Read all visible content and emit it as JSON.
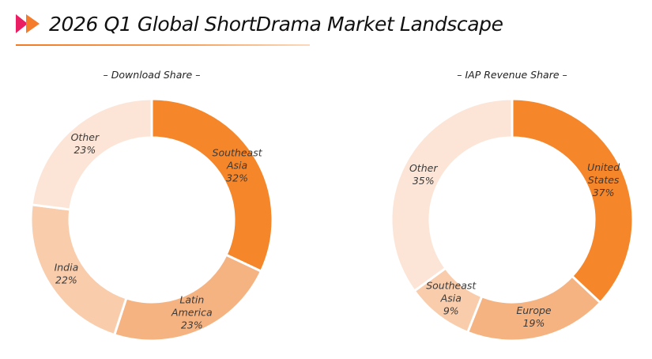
{
  "header": {
    "title": "2026 Q1 Global ShortDrama Market Landscape",
    "logo_icon": "double-arrow-logo-icon",
    "colors": {
      "logo_left": "#e91e63",
      "logo_right": "#f57c2b",
      "rule": "#f27a24"
    }
  },
  "chart_data": [
    {
      "type": "pie",
      "donut": true,
      "title": "– Download Share –",
      "legend": "none",
      "slices": [
        {
          "lines": [
            "Southeast",
            "Asia"
          ],
          "value": 32,
          "label": "32%",
          "color": "#f5862a"
        },
        {
          "lines": [
            "Latin",
            "America"
          ],
          "value": 23,
          "label": "23%",
          "color": "#f6b382"
        },
        {
          "lines": [
            "India"
          ],
          "value": 22,
          "label": "22%",
          "color": "#f9ccab"
        },
        {
          "lines": [
            "Other"
          ],
          "value": 23,
          "label": "23%",
          "color": "#fce5d6"
        }
      ]
    },
    {
      "type": "pie",
      "donut": true,
      "title": "– IAP Revenue Share –",
      "legend": "none",
      "slices": [
        {
          "lines": [
            "United",
            "States"
          ],
          "value": 37,
          "label": "37%",
          "color": "#f5862a"
        },
        {
          "lines": [
            "Europe"
          ],
          "value": 19,
          "label": "19%",
          "color": "#f6b382"
        },
        {
          "lines": [
            "Southeast",
            "Asia"
          ],
          "value": 9,
          "label": "9%",
          "color": "#f9ccab"
        },
        {
          "lines": [
            "Other"
          ],
          "value": 35,
          "label": "35%",
          "color": "#fce5d6"
        }
      ]
    }
  ]
}
